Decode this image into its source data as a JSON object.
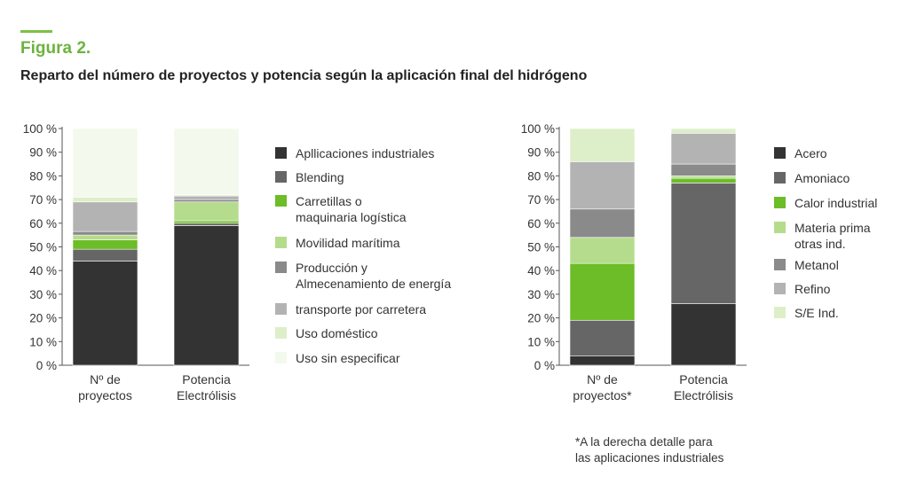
{
  "figure": {
    "label": "Figura 2.",
    "title": "Reparto del número de proyectos y potencia según la aplicación final del hidrógeno",
    "accent_color": "#7cc144"
  },
  "footnote": [
    "*A la derecha detalle para",
    "las aplicaciones industriales"
  ],
  "chart_data": [
    {
      "type": "bar",
      "stacked": true,
      "ylim": [
        0,
        100
      ],
      "yticks": [
        "0 %",
        "10 %",
        "20 %",
        "30 %",
        "40 %",
        "50 %",
        "60 %",
        "70 %",
        "80 %",
        "90 %",
        "100 %"
      ],
      "categories": [
        [
          "Nº de",
          "proyectos"
        ],
        [
          "Potencia",
          "Electrólisis"
        ]
      ],
      "legend_position": "right",
      "series": [
        {
          "name": [
            "Apllicaciones industriales"
          ],
          "color": "#333333",
          "values": [
            44,
            59
          ]
        },
        {
          "name": [
            "Blending"
          ],
          "color": "#666666",
          "values": [
            5,
            1
          ]
        },
        {
          "name": [
            "Carretillas o",
            "maquinaria logística"
          ],
          "color": "#6cbd27",
          "values": [
            4,
            1
          ]
        },
        {
          "name": [
            "Movilidad marítima"
          ],
          "color": "#b5dc8c",
          "values": [
            2,
            8
          ]
        },
        {
          "name": [
            "Producción y",
            "Almecenamiento de energía"
          ],
          "color": "#8a8a8a",
          "values": [
            1.5,
            1
          ]
        },
        {
          "name": [
            "transporte por carretera"
          ],
          "color": "#b3b3b3",
          "values": [
            12.5,
            1.5
          ]
        },
        {
          "name": [
            "Uso doméstico"
          ],
          "color": "#ddefc9",
          "values": [
            2,
            0.5
          ]
        },
        {
          "name": [
            "Uso sin especificar"
          ],
          "color": "#f3f9ec",
          "values": [
            29,
            28
          ]
        }
      ]
    },
    {
      "type": "bar",
      "stacked": true,
      "ylim": [
        0,
        100
      ],
      "yticks": [
        "0 %",
        "10 %",
        "20 %",
        "30 %",
        "40 %",
        "50 %",
        "60 %",
        "70 %",
        "80 %",
        "90 %",
        "100 %"
      ],
      "categories": [
        [
          "Nº de",
          "proyectos*"
        ],
        [
          "Potencia",
          "Electrólisis"
        ]
      ],
      "legend_position": "right",
      "series": [
        {
          "name": [
            "Acero"
          ],
          "color": "#333333",
          "values": [
            4,
            26
          ]
        },
        {
          "name": [
            "Amoniaco"
          ],
          "color": "#666666",
          "values": [
            15,
            51
          ]
        },
        {
          "name": [
            "Calor industrial"
          ],
          "color": "#6cbd27",
          "values": [
            24,
            2
          ]
        },
        {
          "name": [
            "Materia prima",
            "otras ind."
          ],
          "color": "#b5dc8c",
          "values": [
            11,
            1
          ]
        },
        {
          "name": [
            "Metanol"
          ],
          "color": "#8a8a8a",
          "values": [
            12,
            5
          ]
        },
        {
          "name": [
            "Refino"
          ],
          "color": "#b3b3b3",
          "values": [
            20,
            13
          ]
        },
        {
          "name": [
            "S/E Ind."
          ],
          "color": "#ddefc9",
          "values": [
            14,
            2
          ]
        }
      ]
    }
  ]
}
